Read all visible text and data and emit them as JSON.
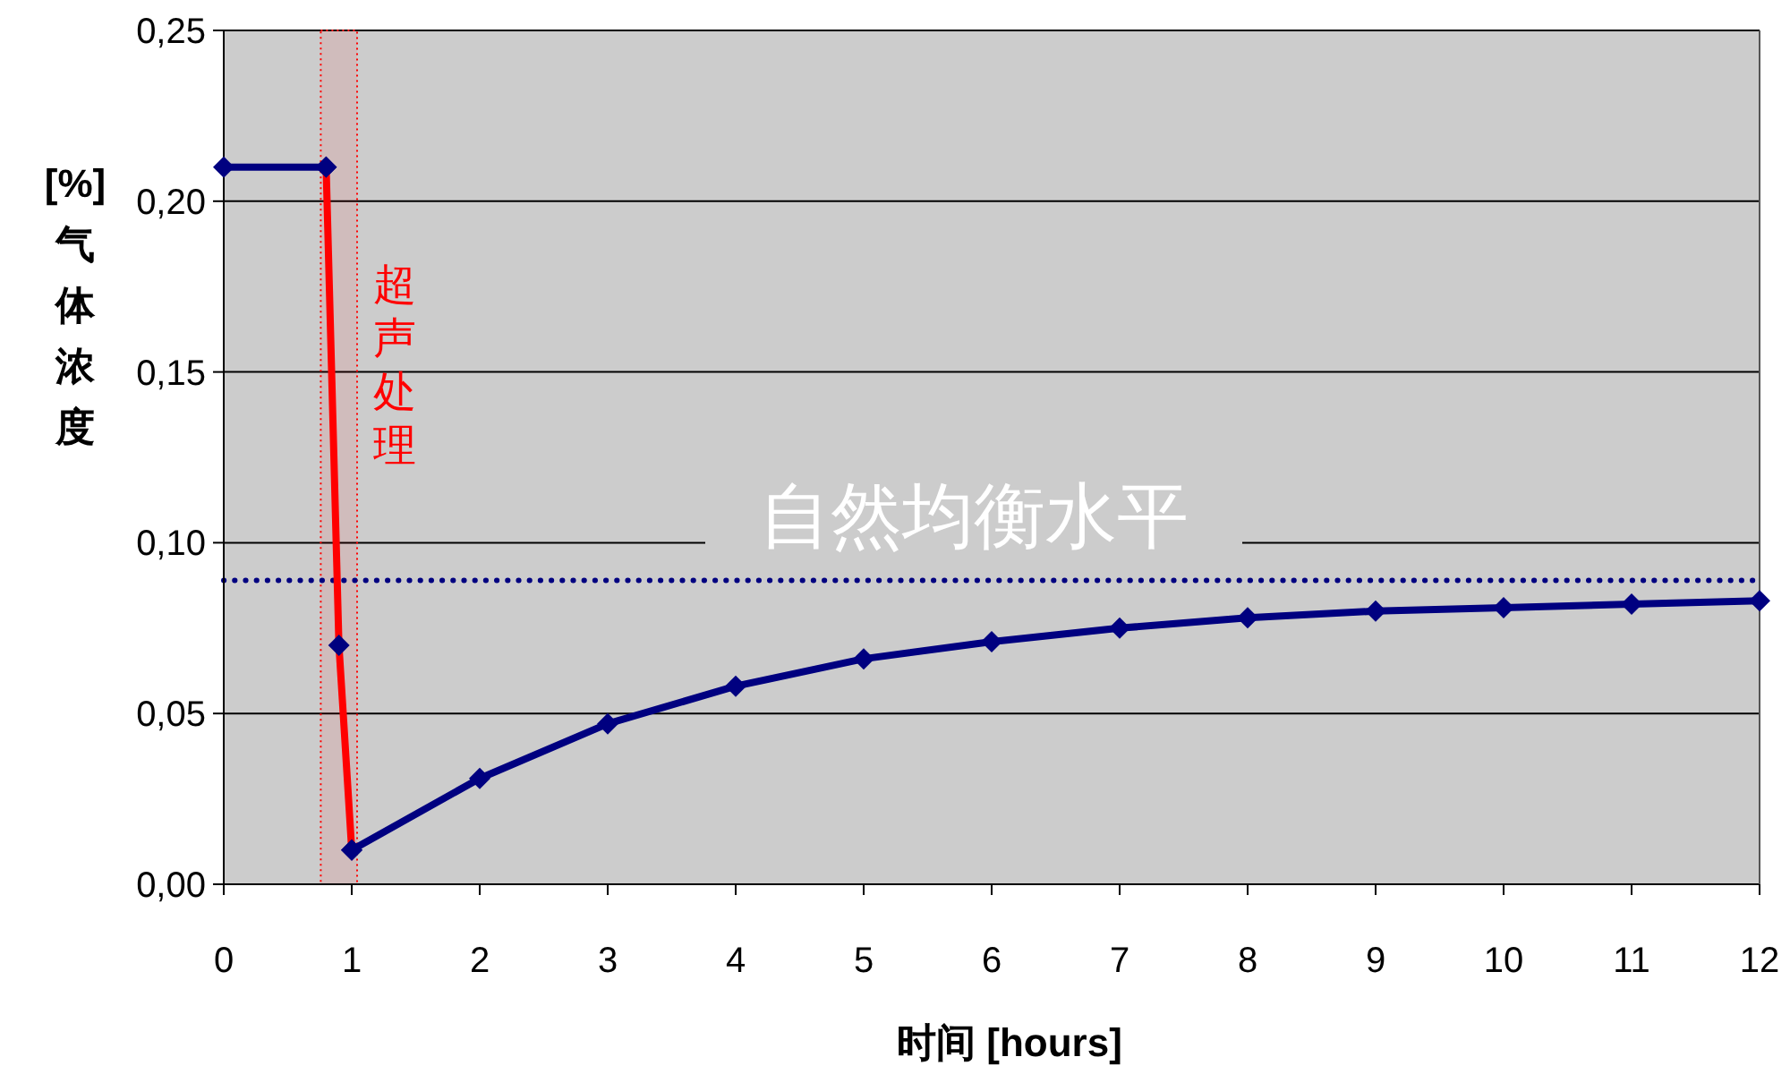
{
  "chart_data": {
    "type": "line",
    "xlabel": "时间 [hours]",
    "ylabel": "[%] 气体浓度",
    "xlim": [
      0,
      12
    ],
    "xticks": [
      {
        "value": 0,
        "label": "0"
      },
      {
        "value": 1,
        "label": "1"
      },
      {
        "value": 2,
        "label": "2"
      },
      {
        "value": 3,
        "label": "3"
      },
      {
        "value": 4,
        "label": "4"
      },
      {
        "value": 5,
        "label": "5"
      },
      {
        "value": 6,
        "label": "6"
      },
      {
        "value": 7,
        "label": "7"
      },
      {
        "value": 8,
        "label": "8"
      },
      {
        "value": 9,
        "label": "9"
      },
      {
        "value": 10,
        "label": "10"
      },
      {
        "value": 11,
        "label": "11"
      },
      {
        "value": 12,
        "label": "12"
      }
    ],
    "ylim": [
      0,
      0.25
    ],
    "yticks": [
      {
        "value": 0,
        "label": "0,00"
      },
      {
        "value": 0.05,
        "label": "0,05"
      },
      {
        "value": 0.1,
        "label": "0,10"
      },
      {
        "value": 0.15,
        "label": "0,15"
      },
      {
        "value": 0.2,
        "label": "0,20"
      },
      {
        "value": 0.25,
        "label": "0,25"
      }
    ],
    "grid": "y",
    "marker": "diamond",
    "line_style": "solid",
    "series": [
      {
        "color": "#000080",
        "x": [
          0,
          0.8
        ],
        "values": [
          0.21,
          0.21
        ]
      },
      {
        "color": "#ff0000",
        "x": [
          0.8,
          0.9,
          1
        ],
        "values": [
          0.21,
          0.07,
          0.01
        ]
      },
      {
        "color": "#000080",
        "x": [
          1,
          2,
          3,
          4,
          5,
          6,
          7,
          8,
          9,
          10,
          11,
          12
        ],
        "values": [
          0.01,
          0.031,
          0.047,
          0.058,
          0.066,
          0.071,
          0.075,
          0.078,
          0.08,
          0.081,
          0.082,
          0.083
        ]
      }
    ],
    "ref_lines": [
      {
        "axis": "y",
        "value": 0.089,
        "label": "自然均衡水平",
        "color": "#000080",
        "line_style": "dotted"
      }
    ],
    "bands": [
      {
        "axis": "x",
        "from": 0.8,
        "to": 1,
        "label": "超声处理",
        "color": "#ff0000"
      }
    ]
  }
}
